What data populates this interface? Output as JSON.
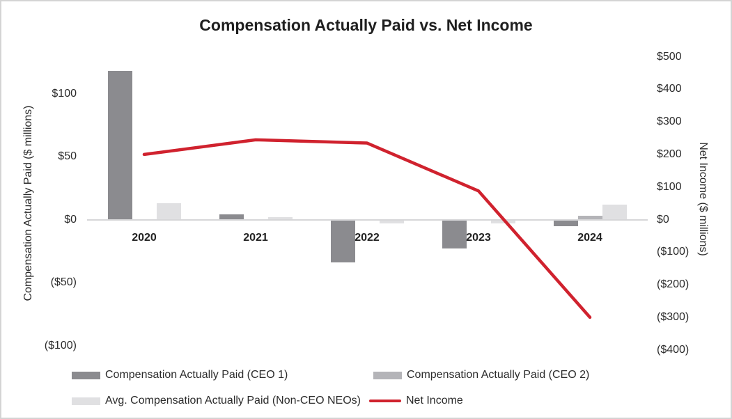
{
  "title": "Compensation Actually Paid vs. Net Income",
  "left_axis": {
    "title": "Compensation Actually Paid ($ millions)",
    "ticks": [
      {
        "label": "$100",
        "value": 100
      },
      {
        "label": "$50",
        "value": 50
      },
      {
        "label": "$0",
        "value": 0
      },
      {
        "label": "($50)",
        "value": -50
      },
      {
        "label": "($100)",
        "value": -100
      }
    ]
  },
  "right_axis": {
    "title": "Net Income ($ millions)",
    "ticks": [
      {
        "label": "$500",
        "value": 500
      },
      {
        "label": "$400",
        "value": 400
      },
      {
        "label": "$300",
        "value": 300
      },
      {
        "label": "$200",
        "value": 200
      },
      {
        "label": "$100",
        "value": 100
      },
      {
        "label": "$0",
        "value": 0
      },
      {
        "label": "($100)",
        "value": -100
      },
      {
        "label": "($200)",
        "value": -200
      },
      {
        "label": "($300)",
        "value": -300
      },
      {
        "label": "($400)",
        "value": -400
      }
    ]
  },
  "chart_data": {
    "type": "bar",
    "subtype": "grouped-bars-with-line-overlay",
    "title": "Compensation Actually Paid vs. Net Income",
    "categories": [
      "2020",
      "2021",
      "2022",
      "2023",
      "2024"
    ],
    "series": [
      {
        "name": "Compensation Actually Paid (CEO 1)",
        "type": "bar",
        "axis": "left",
        "color": "#8b8b8f",
        "values": [
          118,
          4,
          -34,
          -23,
          -5
        ]
      },
      {
        "name": "Compensation Actually Paid (CEO 2)",
        "type": "bar",
        "axis": "left",
        "color": "#b4b4b8",
        "values": [
          null,
          null,
          null,
          null,
          3
        ]
      },
      {
        "name": "Avg. Compensation Actually Paid (Non-CEO NEOs)",
        "type": "bar",
        "axis": "left",
        "color": "#e0e0e2",
        "values": [
          13,
          2,
          -3,
          -3,
          12
        ]
      },
      {
        "name": "Net Income",
        "type": "line",
        "axis": "right",
        "color": "#d0222e",
        "values": [
          200,
          245,
          235,
          88,
          -300
        ]
      }
    ],
    "xlabel": "",
    "left_ylabel": "Compensation Actually Paid ($ millions)",
    "right_ylabel": "Net Income ($ millions)",
    "left_ylim": [
      -100,
      125
    ],
    "right_ylim": [
      -400,
      500
    ],
    "grid": false,
    "legend_position": "bottom"
  },
  "legend": {
    "items": [
      {
        "label": "Compensation Actually Paid (CEO 1)",
        "swatch": "bar",
        "color": "#8b8b8f"
      },
      {
        "label": "Compensation Actually Paid (CEO 2)",
        "swatch": "bar",
        "color": "#b4b4b8"
      },
      {
        "label": "Avg. Compensation Actually Paid (Non-CEO NEOs)",
        "swatch": "bar",
        "color": "#e0e0e2"
      },
      {
        "label": "Net Income",
        "swatch": "line",
        "color": "#d0222e"
      }
    ]
  }
}
